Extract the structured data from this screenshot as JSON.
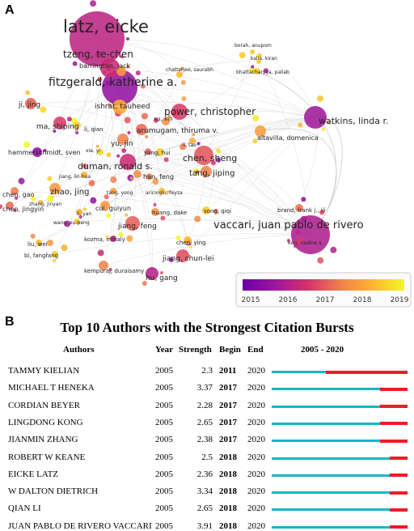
{
  "panel_a_label": "A",
  "panel_b_label": "B",
  "network": {
    "nodes": [
      {
        "label": "latz, eicke",
        "year": 2016.3
      },
      {
        "label": "tzeng, te-chen",
        "year": 2016.5
      },
      {
        "label": "barrington, jack",
        "year": 2018.0
      },
      {
        "label": "chatterjee, saurabh",
        "year": 2018.4
      },
      {
        "label": "borah, anupom",
        "year": 2018.6
      },
      {
        "label": "kalia, kiran",
        "year": 2018.6
      },
      {
        "label": "bhattacharyya, pallab",
        "year": 2018.7
      },
      {
        "label": "fitzgerald, katherine a.",
        "year": 2015.7
      },
      {
        "label": "ishrat, tauheed",
        "year": 2018.2
      },
      {
        "label": "power, christopher",
        "year": 2016.8
      },
      {
        "label": "ji, jing",
        "year": 2017.2
      },
      {
        "label": "ma, shiping",
        "year": 2016.8
      },
      {
        "label": "li, qian",
        "year": 2018.7
      },
      {
        "label": "xu, xin",
        "year": 2017.8
      },
      {
        "label": "arumugam, thiruma v.",
        "year": 2017.3
      },
      {
        "label": "watkins, linda r.",
        "year": 2015.9
      },
      {
        "label": "altavilla, domenica",
        "year": 2018.0
      },
      {
        "label": "hammerschmidt, sven",
        "year": 2015.6
      },
      {
        "label": "yu, jin",
        "year": 2017.6
      },
      {
        "label": "yang, hui",
        "year": 2018.6
      },
      {
        "label": "li, tao",
        "year": 2018.3
      },
      {
        "label": "xie, yi",
        "year": 2018.8
      },
      {
        "label": "chen, sheng",
        "year": 2017.1
      },
      {
        "label": "duman, ronald s.",
        "year": 2016.5
      },
      {
        "label": "tang, jiping",
        "year": 2017.6
      },
      {
        "label": "jiang, lin-hua",
        "year": 2018.3
      },
      {
        "label": "han, feng",
        "year": 2017.8
      },
      {
        "label": "zhao, jing",
        "year": 2017.9
      },
      {
        "label": "zhang, jinyan",
        "year": 2018.4
      },
      {
        "label": "chen, gao",
        "year": 2017.5
      },
      {
        "label": "chen, jingyin",
        "year": 2017.3
      },
      {
        "label": "tang, yong",
        "year": 2018.0
      },
      {
        "label": "aricioglu, feyza",
        "year": 2018.5
      },
      {
        "label": "li, yan",
        "year": 2018.3
      },
      {
        "label": "cui, guiyun",
        "year": 2017.9
      },
      {
        "label": "wang, xu-peng",
        "year": 2018.5
      },
      {
        "label": "huang, dake",
        "year": 2017.9
      },
      {
        "label": "song, qiqi",
        "year": 2018.6
      },
      {
        "label": "jiang, feng",
        "year": 2017.2
      },
      {
        "label": "kozma, mihaly",
        "year": 2016.3
      },
      {
        "label": "brand, frank j., iii",
        "year": 2017.4
      },
      {
        "label": "vaccari, juan pablo de rivero",
        "year": 2016.1
      },
      {
        "label": "kerr, nadine a.",
        "year": 2016.8
      },
      {
        "label": "liu, wei",
        "year": 2018.4
      },
      {
        "label": "bi, fangfang",
        "year": 2018.6
      },
      {
        "label": "chen, ying",
        "year": 2018.4
      },
      {
        "label": "jiang, chun-lei",
        "year": 2017.0
      },
      {
        "label": "kempuraj, duraisamy",
        "year": 2017.6
      },
      {
        "label": "hu, gang",
        "year": 2016.2
      }
    ],
    "colorbar": {
      "ticks": [
        "2015",
        "2016",
        "2017",
        "2018",
        "2019"
      ],
      "colors": [
        "#6a00a8",
        "#9c179e",
        "#d6306a",
        "#f07f4f",
        "#fdb32f",
        "#f0f921"
      ]
    }
  },
  "bursts": {
    "title": "Top 10 Authors with the Strongest Citation Bursts",
    "headers": {
      "authors": "Authors",
      "year": "Year",
      "strength": "Strength",
      "begin": "Begin",
      "end": "End",
      "range": "2005 - 2020"
    },
    "range_start": 2005,
    "range_end": 2020,
    "colors": {
      "baseline": "#16b6c8",
      "burst": "#ee1c25"
    },
    "rows": [
      {
        "author": "TAMMY KIELIAN",
        "year": "2005",
        "strength": "2.3",
        "begin": "2011",
        "end": "2020"
      },
      {
        "author": "MICHAEL T HENEKA",
        "year": "2005",
        "strength": "3.37",
        "begin": "2017",
        "end": "2020"
      },
      {
        "author": "CORDIAN BEYER",
        "year": "2005",
        "strength": "2.28",
        "begin": "2017",
        "end": "2020"
      },
      {
        "author": "LINGDONG KONG",
        "year": "2005",
        "strength": "2.65",
        "begin": "2017",
        "end": "2020"
      },
      {
        "author": "JIANMIN ZHANG",
        "year": "2005",
        "strength": "2.38",
        "begin": "2017",
        "end": "2020"
      },
      {
        "author": "ROBERT W KEANE",
        "year": "2005",
        "strength": "2.5",
        "begin": "2018",
        "end": "2020"
      },
      {
        "author": "EICKE LATZ",
        "year": "2005",
        "strength": "2.36",
        "begin": "2018",
        "end": "2020"
      },
      {
        "author": "W DALTON DIETRICH",
        "year": "2005",
        "strength": "3.34",
        "begin": "2018",
        "end": "2020"
      },
      {
        "author": "QIAN LI",
        "year": "2005",
        "strength": "2.65",
        "begin": "2018",
        "end": "2020"
      },
      {
        "author": "JUAN PABLO DE RIVERO VACCARI",
        "year": "2005",
        "strength": "3.91",
        "begin": "2018",
        "end": "2020"
      }
    ]
  },
  "chart_data": [
    {
      "type": "scatter",
      "description_kind": "co-authorship network overlay",
      "color_scale": {
        "min": 2015,
        "max": 2019,
        "ticks": [
          2015,
          2016,
          2017,
          2018,
          2019
        ]
      },
      "nodes_ref": "network.nodes"
    },
    {
      "type": "table",
      "title": "Top 10 Authors with the Strongest Citation Bursts",
      "columns": [
        "Authors",
        "Year",
        "Strength",
        "Begin",
        "End",
        "2005 - 2020"
      ],
      "rows": [
        [
          "TAMMY KIELIAN",
          2005,
          2.3,
          2011,
          2020
        ],
        [
          "MICHAEL T HENEKA",
          2005,
          3.37,
          2017,
          2020
        ],
        [
          "CORDIAN BEYER",
          2005,
          2.28,
          2017,
          2020
        ],
        [
          "LINGDONG KONG",
          2005,
          2.65,
          2017,
          2020
        ],
        [
          "JIANMIN ZHANG",
          2005,
          2.38,
          2017,
          2020
        ],
        [
          "ROBERT W KEANE",
          2005,
          2.5,
          2018,
          2020
        ],
        [
          "EICKE LATZ",
          2005,
          2.36,
          2018,
          2020
        ],
        [
          "W DALTON DIETRICH",
          2005,
          3.34,
          2018,
          2020
        ],
        [
          "QIAN LI",
          2005,
          2.65,
          2018,
          2020
        ],
        [
          "JUAN PABLO DE RIVERO VACCARI",
          2005,
          3.91,
          2018,
          2020
        ]
      ]
    }
  ]
}
